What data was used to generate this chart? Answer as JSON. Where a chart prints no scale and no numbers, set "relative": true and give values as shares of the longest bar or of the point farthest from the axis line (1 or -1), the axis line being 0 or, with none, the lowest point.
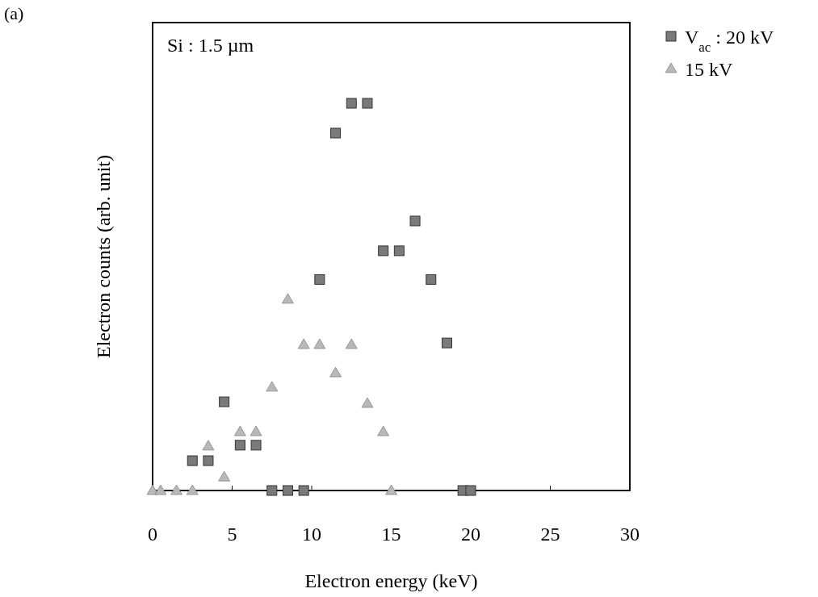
{
  "chart_data": {
    "type": "scatter",
    "xlabel": "Electron energy (keV)",
    "ylabel": "Electron counts (arb. unit)",
    "annotations": [
      "(a)",
      "Si : 1.5 µm"
    ],
    "relative": true,
    "xlim": [
      0,
      30
    ],
    "xticks": [
      0,
      5,
      10,
      15,
      20,
      25,
      30
    ],
    "grid": false,
    "legend": "top right",
    "series": [
      {
        "name": "V$_{ac}$ : 20 kV",
        "color": "#7a7a7a",
        "marker": "square",
        "x": [
          2.5,
          3.5,
          4.5,
          5.5,
          6.5,
          7.5,
          8.5,
          9.5,
          10.5,
          11.5,
          12.5,
          13.5,
          14.5,
          15.5,
          16.5,
          17.5,
          18.5,
          19.5,
          20
        ],
        "values": [
          0.077,
          0.077,
          0.229,
          0.117,
          0.117,
          0,
          0,
          0,
          0.545,
          0.923,
          1,
          1,
          0.619,
          0.619,
          0.696,
          0.545,
          0.381,
          0,
          0
        ]
      },
      {
        "name": "15 kV",
        "color": "#b8b8b8",
        "marker": "triangle",
        "x": [
          0,
          0.5,
          1.5,
          2.5,
          3.5,
          4.5,
          5.5,
          6.5,
          7.5,
          8.5,
          9.5,
          10.5,
          11.5,
          12.5,
          13.5,
          14.5,
          15
        ],
        "values": [
          0,
          0,
          0,
          0,
          0.115,
          0.035,
          0.152,
          0.152,
          0.267,
          0.494,
          0.377,
          0.377,
          0.304,
          0.377,
          0.225,
          0.152,
          0
        ]
      }
    ]
  }
}
